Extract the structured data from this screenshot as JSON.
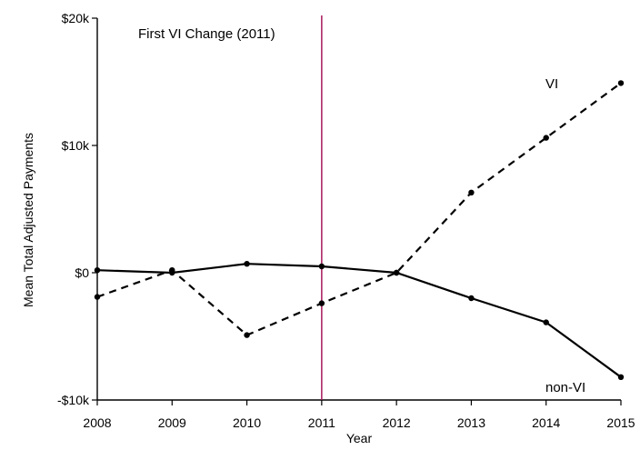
{
  "chart_data": {
    "type": "line",
    "title": "",
    "xlabel": "Year",
    "ylabel": "Mean Total Adjusted Payments",
    "x": [
      2008,
      2009,
      2010,
      2011,
      2012,
      2013,
      2014,
      2015
    ],
    "x_tick_labels": [
      "2008",
      "2009",
      "2010",
      "2011",
      "2012",
      "2013",
      "2014",
      "2015"
    ],
    "xlim": [
      2008,
      2015
    ],
    "ylim": [
      -10000,
      20000
    ],
    "y_ticks": [
      -10000,
      0,
      10000,
      20000
    ],
    "y_tick_labels": [
      "-$10k",
      "$0",
      "$10k",
      "$20k"
    ],
    "grid": false,
    "legend": "none",
    "series": [
      {
        "name": "VI",
        "style": "dashed",
        "color": "#000000",
        "values": [
          -1900,
          200,
          -4900,
          -2400,
          0,
          6300,
          10600,
          14900
        ]
      },
      {
        "name": "non-VI",
        "style": "solid",
        "color": "#000000",
        "values": [
          200,
          0,
          700,
          500,
          0,
          -2000,
          -3900,
          -8200
        ]
      }
    ],
    "reference_line": {
      "x": 2011,
      "label": "First VI Change (2011)",
      "color": "#a8185a"
    }
  }
}
